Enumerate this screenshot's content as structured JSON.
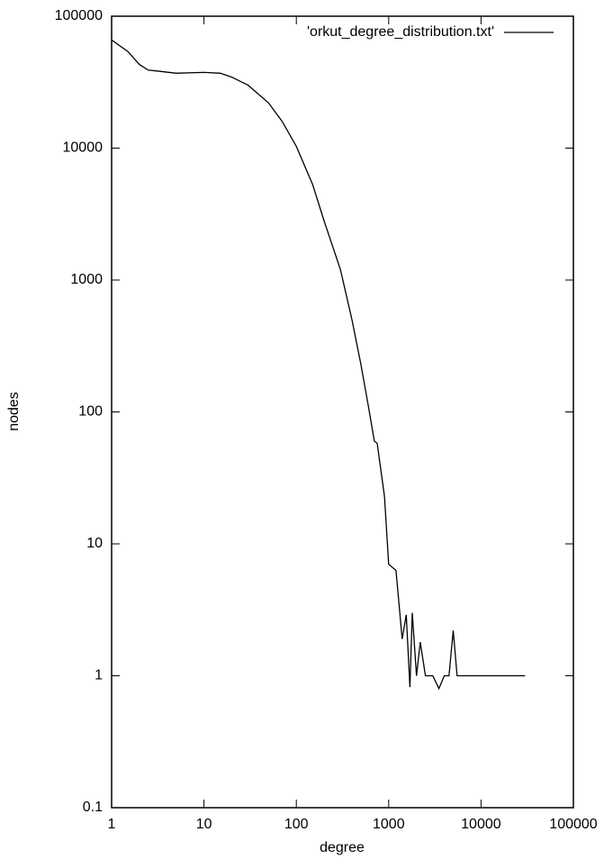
{
  "chart_data": {
    "type": "line",
    "x_label": "degree",
    "y_label": "nodes",
    "xlog": true,
    "ylog": true,
    "legend": "top-right",
    "xlim": [
      1,
      100000
    ],
    "xticks": [
      1,
      10,
      100,
      1000,
      10000,
      100000
    ],
    "ylim": [
      0.1,
      100000
    ],
    "yticks": [
      0.1,
      1,
      10,
      100,
      1000,
      10000,
      100000
    ],
    "series": [
      {
        "name": "'orkut_degree_distribution.txt'",
        "color": "#000000",
        "x": [
          1,
          1.5,
          2,
          2.5,
          3,
          5,
          10,
          15,
          20,
          30,
          50,
          70,
          100,
          150,
          200,
          300,
          400,
          500,
          600,
          700,
          750,
          900,
          1000,
          1200,
          1400,
          1550,
          1700,
          1800,
          2000,
          2200,
          2500,
          3000,
          3500,
          4000,
          4500,
          5000,
          5500,
          30000
        ],
        "values": [
          66000,
          54000,
          43000,
          39000,
          38500,
          37000,
          37500,
          37000,
          34500,
          30000,
          22000,
          16000,
          10300,
          5300,
          2800,
          1200,
          500,
          230,
          113,
          60,
          58,
          23,
          7,
          6.3,
          1.9,
          2.9,
          0.82,
          3,
          1,
          1.8,
          1,
          1,
          0.8,
          1,
          1,
          2.2,
          1,
          1
        ]
      }
    ]
  }
}
